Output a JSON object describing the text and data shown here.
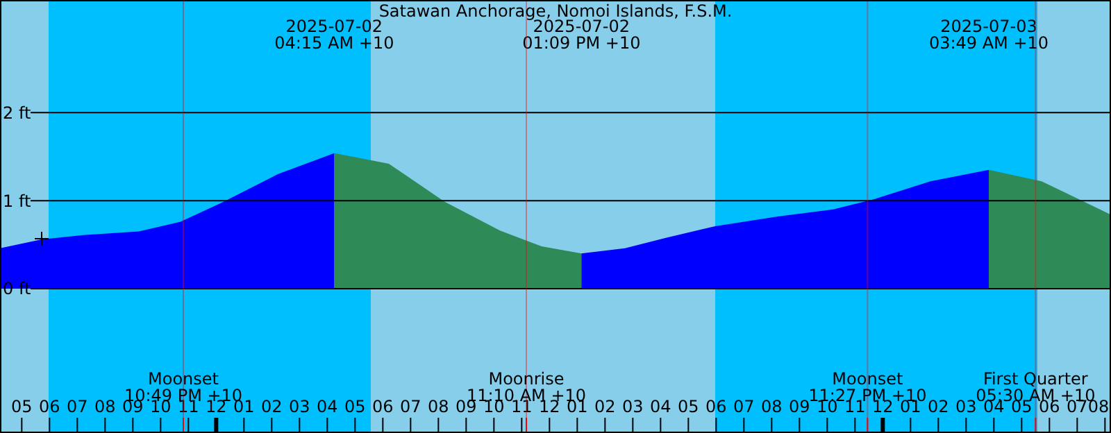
{
  "chart_data": {
    "type": "area",
    "title": "Satawan Anchorage, Nomoi Islands, F.S.M.",
    "series": [
      {
        "color": "#0000ff",
        "x": [
          "2025-07-01T16:13",
          "2025-07-01T17:43",
          "2025-07-01T19:13",
          "2025-07-01T21:13",
          "2025-07-01T22:43",
          "2025-07-02T00:13",
          "2025-07-02T02:13",
          "2025-07-02T04:15"
        ],
        "values": [
          0.46,
          0.56,
          0.61,
          0.65,
          0.76,
          0.98,
          1.3,
          1.54
        ]
      },
      {
        "color": "#2e8b57",
        "x": [
          "2025-07-02T04:15",
          "2025-07-02T06:13",
          "2025-07-02T08:13",
          "2025-07-02T10:13",
          "2025-07-02T11:43",
          "2025-07-02T13:09"
        ],
        "values": [
          1.54,
          1.42,
          0.99,
          0.66,
          0.48,
          0.4
        ]
      },
      {
        "color": "#0000ff",
        "x": [
          "2025-07-02T13:09",
          "2025-07-02T14:43",
          "2025-07-02T16:13",
          "2025-07-02T17:58",
          "2025-07-02T20:13",
          "2025-07-02T22:13",
          "2025-07-02T23:43",
          "2025-07-03T01:43",
          "2025-07-03T03:49"
        ],
        "values": [
          0.4,
          0.46,
          0.58,
          0.71,
          0.82,
          0.9,
          1.02,
          1.22,
          1.35
        ]
      },
      {
        "color": "#2e8b57",
        "x": [
          "2025-07-03T03:49",
          "2025-07-03T05:43",
          "2025-07-03T08:13"
        ],
        "values": [
          1.35,
          1.22,
          0.84
        ]
      }
    ],
    "xlim": [
      "2025-07-01T16:13",
      "2025-07-03T08:13"
    ],
    "ylim": [
      -1.64,
      3.28
    ],
    "yticks": [
      {
        "value": 0,
        "label": "0 ft"
      },
      {
        "value": 1,
        "label": "1 ft"
      },
      {
        "value": 2,
        "label": "2 ft"
      }
    ],
    "xticks": [
      {
        "value": "2025-07-01T17:00",
        "label": "05"
      },
      {
        "value": "2025-07-01T18:00",
        "label": "06"
      },
      {
        "value": "2025-07-01T19:00",
        "label": "07"
      },
      {
        "value": "2025-07-01T20:00",
        "label": "08"
      },
      {
        "value": "2025-07-01T21:00",
        "label": "09"
      },
      {
        "value": "2025-07-01T22:00",
        "label": "10"
      },
      {
        "value": "2025-07-01T23:00",
        "label": "11"
      },
      {
        "value": "2025-07-02T00:00",
        "label": "12"
      },
      {
        "value": "2025-07-02T01:00",
        "label": "01"
      },
      {
        "value": "2025-07-02T02:00",
        "label": "02"
      },
      {
        "value": "2025-07-02T03:00",
        "label": "03"
      },
      {
        "value": "2025-07-02T04:00",
        "label": "04"
      },
      {
        "value": "2025-07-02T05:00",
        "label": "05"
      },
      {
        "value": "2025-07-02T06:00",
        "label": "06"
      },
      {
        "value": "2025-07-02T07:00",
        "label": "07"
      },
      {
        "value": "2025-07-02T08:00",
        "label": "08"
      },
      {
        "value": "2025-07-02T09:00",
        "label": "09"
      },
      {
        "value": "2025-07-02T10:00",
        "label": "10"
      },
      {
        "value": "2025-07-02T11:00",
        "label": "11"
      },
      {
        "value": "2025-07-02T12:00",
        "label": "12"
      },
      {
        "value": "2025-07-02T13:00",
        "label": "01"
      },
      {
        "value": "2025-07-02T14:00",
        "label": "02"
      },
      {
        "value": "2025-07-02T15:00",
        "label": "03"
      },
      {
        "value": "2025-07-02T16:00",
        "label": "04"
      },
      {
        "value": "2025-07-02T17:00",
        "label": "05"
      },
      {
        "value": "2025-07-02T18:00",
        "label": "06"
      },
      {
        "value": "2025-07-02T19:00",
        "label": "07"
      },
      {
        "value": "2025-07-02T20:00",
        "label": "08"
      },
      {
        "value": "2025-07-02T21:00",
        "label": "09"
      },
      {
        "value": "2025-07-02T22:00",
        "label": "10"
      },
      {
        "value": "2025-07-02T23:00",
        "label": "11"
      },
      {
        "value": "2025-07-03T00:00",
        "label": "12"
      },
      {
        "value": "2025-07-03T01:00",
        "label": "01"
      },
      {
        "value": "2025-07-03T02:00",
        "label": "02"
      },
      {
        "value": "2025-07-03T03:00",
        "label": "03"
      },
      {
        "value": "2025-07-03T04:00",
        "label": "04"
      },
      {
        "value": "2025-07-03T05:00",
        "label": "05"
      },
      {
        "value": "2025-07-03T06:00",
        "label": "06"
      },
      {
        "value": "2025-07-03T07:00",
        "label": "07"
      },
      {
        "value": "2025-07-03T08:00",
        "label": "08"
      }
    ],
    "bands": [
      {
        "axis": "x",
        "from": "2025-07-01T16:13",
        "to": "2025-07-01T17:58",
        "color": "#87ceeb"
      },
      {
        "axis": "x",
        "from": "2025-07-01T17:58",
        "to": "2025-07-02T05:34",
        "color": "#00bfff"
      },
      {
        "axis": "x",
        "from": "2025-07-02T05:34",
        "to": "2025-07-02T17:58",
        "color": "#87ceeb"
      },
      {
        "axis": "x",
        "from": "2025-07-02T17:58",
        "to": "2025-07-03T05:34",
        "color": "#00bfff"
      },
      {
        "axis": "x",
        "from": "2025-07-03T05:34",
        "to": "2025-07-03T08:13",
        "color": "#87ceeb"
      }
    ],
    "annotations": [
      "2025-07-02\n04:15 AM +10",
      "2025-07-02\n01:09 PM +10",
      "2025-07-03\n03:49 AM +10"
    ],
    "ref_lines": [
      {
        "axis": "x",
        "value": "2025-07-01T22:49",
        "label": "Moonset\n10:49 PM +10",
        "color": "#ff0000"
      },
      {
        "axis": "x",
        "value": "2025-07-02T11:10",
        "label": "Moonrise\n11:10 AM +10",
        "color": "#ff0000"
      },
      {
        "axis": "x",
        "value": "2025-07-02T23:27",
        "label": "Moonset\n11:27 PM +10",
        "color": "#ff0000"
      },
      {
        "axis": "x",
        "value": "2025-07-03T05:30",
        "label": "First Quarter\n05:30 AM +10",
        "color": "#ff0000"
      }
    ],
    "grid": "y"
  }
}
